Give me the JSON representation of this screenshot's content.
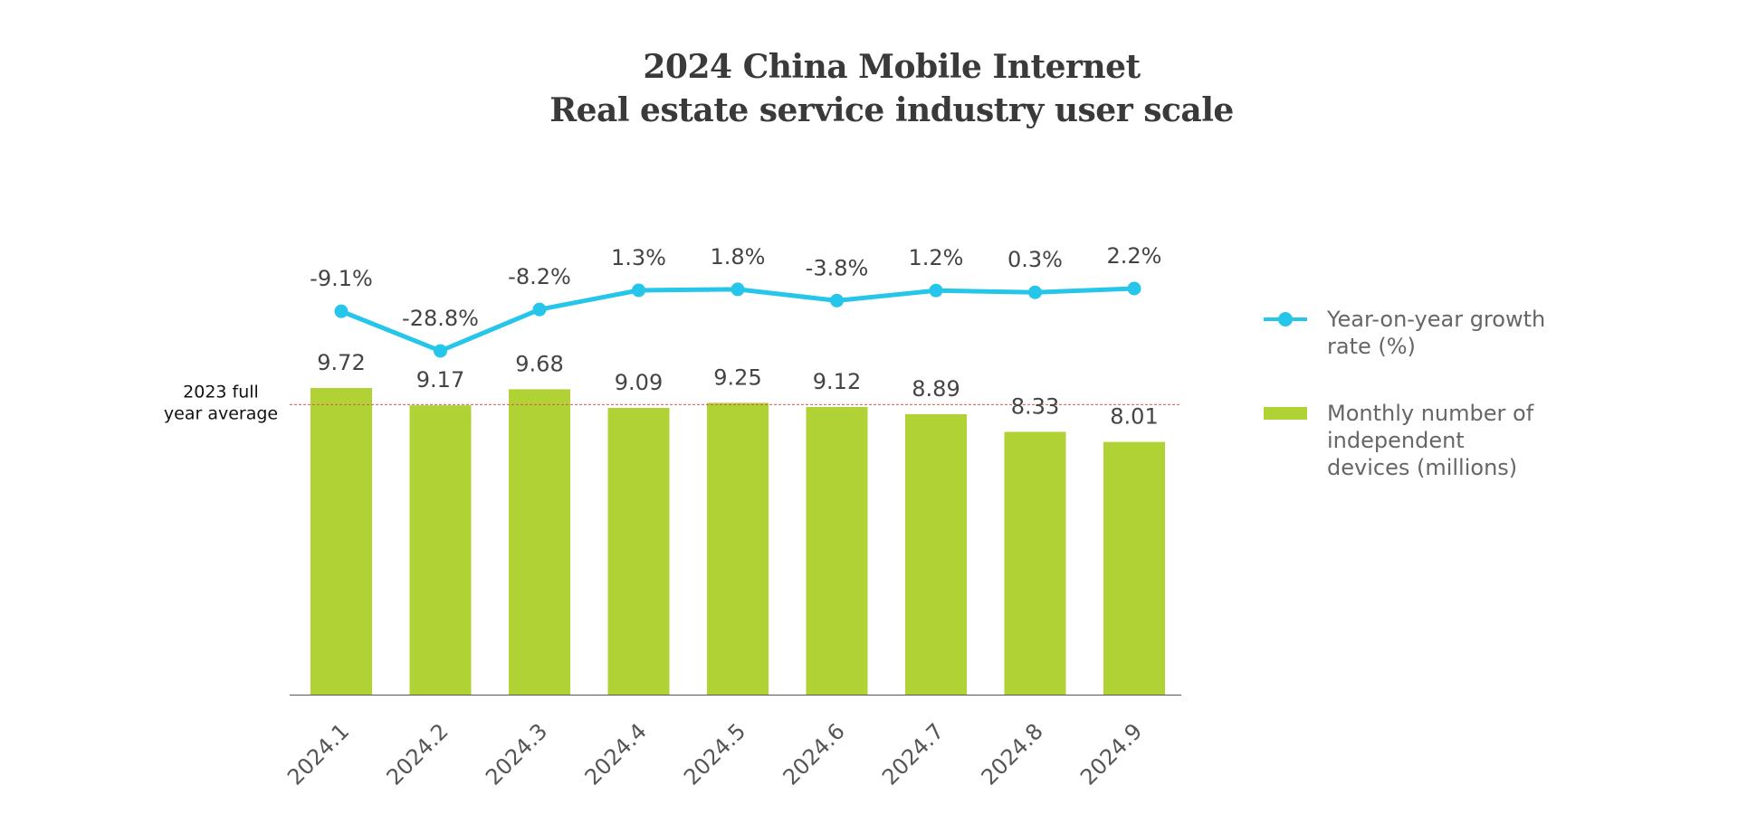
{
  "title": {
    "line1": "2024 China Mobile Internet",
    "line2": "Real estate service industry user scale"
  },
  "chart_data": {
    "type": "bar",
    "title": "2024 China Mobile Internet Real estate service industry user scale",
    "categories": [
      "2024.1",
      "2024.2",
      "2024.3",
      "2024.4",
      "2024.5",
      "2024.6",
      "2024.7",
      "2024.8",
      "2024.9"
    ],
    "series": [
      {
        "name": "Monthly number of independent devices (millions)",
        "kind": "bar",
        "values": [
          9.72,
          9.17,
          9.68,
          9.09,
          9.25,
          9.12,
          8.89,
          8.33,
          8.01
        ],
        "labels": [
          "9.72",
          "9.17",
          "9.68",
          "9.09",
          "9.25",
          "9.12",
          "8.89",
          "8.33",
          "8.01"
        ]
      },
      {
        "name": "Year-on-year growth rate (%)",
        "kind": "line",
        "values": [
          -9.1,
          -28.8,
          -8.2,
          1.3,
          1.8,
          -3.8,
          1.2,
          0.3,
          2.2
        ],
        "labels": [
          "-9.1%",
          "-28.8%",
          "-8.2%",
          "1.3%",
          "1.8%",
          "-3.8%",
          "1.2%",
          "0.3%",
          "2.2%"
        ]
      }
    ],
    "reference_line": {
      "label_line1": "2023 full",
      "label_line2": "year average",
      "value": 9.25
    },
    "bar_ylim": [
      0,
      9.72
    ],
    "line_ylim": [
      -28.8,
      2.2
    ],
    "legend_position": "right",
    "colors": {
      "bar": "#b1d235",
      "line": "#26c6ea",
      "reference": "#e05555",
      "axis": "#555555"
    }
  },
  "legend": {
    "items": [
      {
        "label": "Year-on-year growth rate (%)"
      },
      {
        "label": "Monthly number of independent devices (millions)"
      }
    ]
  }
}
